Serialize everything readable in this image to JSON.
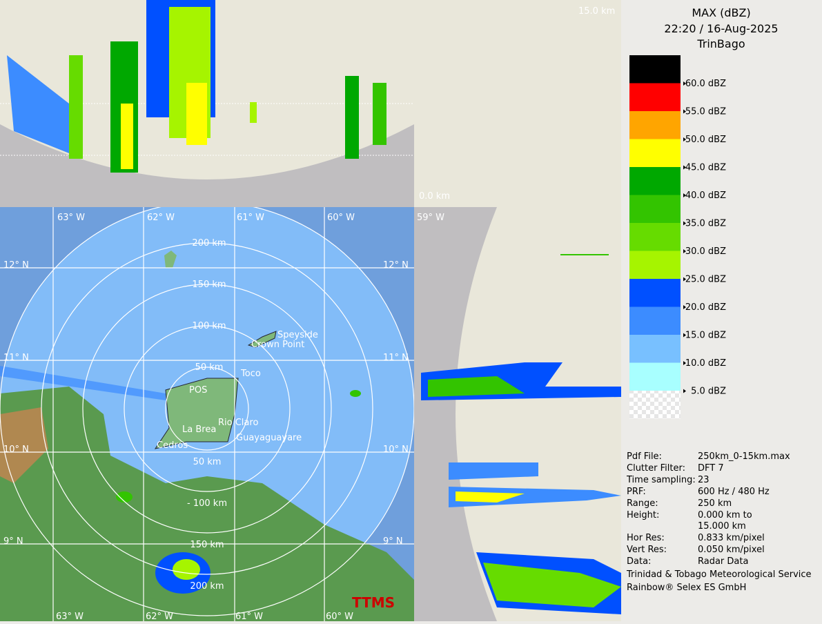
{
  "header": {
    "title": "MAX (dBZ)",
    "time": "22:20 / 16-Aug-2025",
    "site": "TrinBago"
  },
  "legend": {
    "colors": [
      "#000000",
      "#ff0000",
      "#ffa500",
      "#ffff00",
      "#00a800",
      "#33c400",
      "#66dc00",
      "#a6f400",
      "#0050ff",
      "#3c8cff",
      "#78c0ff",
      "#a8ffff",
      "checker"
    ],
    "labels": [
      "60.0 dBZ",
      "55.0 dBZ",
      "50.0 dBZ",
      "45.0 dBZ",
      "40.0 dBZ",
      "35.0 dBZ",
      "30.0 dBZ",
      "25.0 dBZ",
      "20.0 dBZ",
      "15.0 dBZ",
      "10.0 dBZ",
      "5.0 dBZ"
    ]
  },
  "info": [
    [
      "Pdf File:",
      "250km_0-15km.max"
    ],
    [
      "Clutter Filter:",
      "DFT 7"
    ],
    [
      "Time sampling:",
      "23"
    ],
    [
      "PRF:",
      "600 Hz / 480 Hz"
    ],
    [
      "Range:",
      "250 km"
    ],
    [
      "Height:",
      "0.000 km to"
    ],
    [
      "",
      "15.000 km"
    ],
    [
      "Hor Res:",
      "0.833 km/pixel"
    ],
    [
      "Vert Res:",
      "0.050 km/pixel"
    ],
    [
      "Data:",
      "Radar Data"
    ]
  ],
  "footer": [
    "Trinidad & Tobago Meteorological Service",
    "Rainbow® Selex ES GmbH"
  ],
  "profile": {
    "top": "15.0 km",
    "bottom": "0.0 km"
  },
  "map": {
    "longitudes": [
      "63° W",
      "62° W",
      "61° W",
      "60° W",
      "59° W"
    ],
    "latitudes": [
      "12° N",
      "11° N",
      "10° N",
      "9° N"
    ],
    "rings_north": [
      "200 km",
      "150 km",
      "100 km",
      "50 km"
    ],
    "rings_south": [
      "50 km",
      "- 100 km",
      "150 km",
      "200 km"
    ],
    "places": [
      "Speyside",
      "Crown Point",
      "Toco",
      "POS",
      "Rio Claro",
      "La Brea",
      "Guayaguayare",
      "Cedros"
    ],
    "logo": "TTMS"
  }
}
